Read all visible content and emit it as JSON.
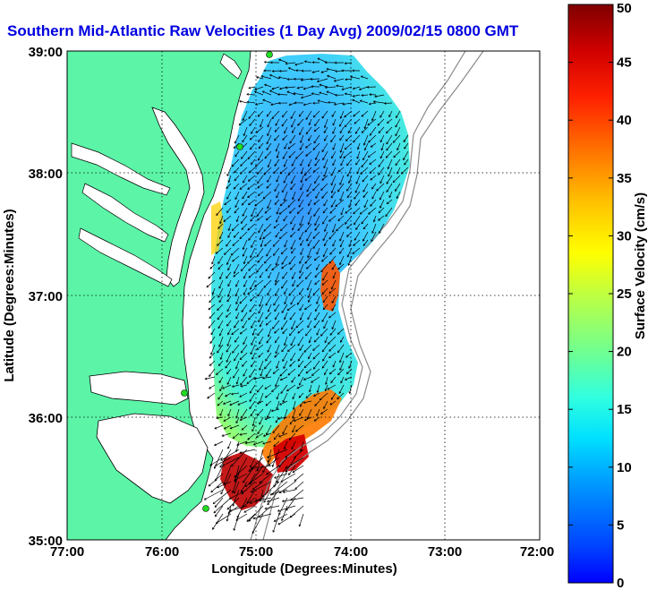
{
  "figure": {
    "title": "Southern Mid-Atlantic Raw Velocities (1 Day Avg) 2009/02/15 0800 GMT",
    "title_color": "#0000e0",
    "xlabel": "Longitude (Degrees:Minutes)",
    "ylabel": "Latitude (Degrees:Minutes)",
    "x_ticks": [
      "77:00",
      "76:00",
      "75:00",
      "74:00",
      "73:00",
      "72:00"
    ],
    "y_ticks": [
      "39:00",
      "38:00",
      "37:00",
      "36:00",
      "35:00"
    ],
    "land_color": "#5cf5a8",
    "grid": "dotted"
  },
  "colorbar": {
    "label": "Surface Velocity (cm/s)",
    "ticks": [
      "50",
      "45",
      "40",
      "35",
      "30",
      "25",
      "20",
      "15",
      "10",
      "5",
      "0"
    ],
    "range": [
      0,
      50
    ],
    "colormap": "jet"
  },
  "chart_data": {
    "type": "map-vector-field",
    "title": "Southern Mid-Atlantic Raw Velocities (1 Day Avg) 2009/02/15 0800 GMT",
    "xlabel": "Longitude (Degrees:Minutes)",
    "ylabel": "Latitude (Degrees:Minutes)",
    "xlim": [
      -77,
      -72
    ],
    "ylim": [
      35,
      39
    ],
    "colorbar_range_cm_s": [
      0,
      50
    ],
    "dominant_flow": "southwestward"
  }
}
